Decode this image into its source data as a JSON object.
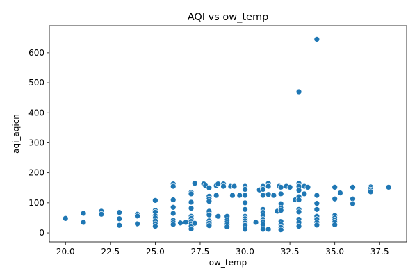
{
  "chart_data": {
    "type": "scatter",
    "title": "AQI vs ow_temp",
    "xlabel": "ow_temp",
    "ylabel": "aqi_aqicn",
    "xlim": [
      19.1,
      39.0
    ],
    "ylim": [
      -30,
      690
    ],
    "xticks": [
      "20.0",
      "22.5",
      "25.0",
      "27.5",
      "30.0",
      "32.5",
      "35.0",
      "37.5"
    ],
    "yticks": [
      "0",
      "100",
      "200",
      "300",
      "400",
      "500",
      "600"
    ],
    "grid": false,
    "legend": "none",
    "color": "#1f77b4",
    "points": [
      [
        20.0,
        48
      ],
      [
        21.0,
        65
      ],
      [
        21.0,
        35
      ],
      [
        22.0,
        72
      ],
      [
        22.0,
        62
      ],
      [
        23.0,
        68
      ],
      [
        23.0,
        47
      ],
      [
        23.0,
        25
      ],
      [
        24.0,
        62
      ],
      [
        24.0,
        56
      ],
      [
        24.0,
        30
      ],
      [
        25.0,
        108
      ],
      [
        25.0,
        75
      ],
      [
        25.0,
        69
      ],
      [
        25.0,
        57
      ],
      [
        25.0,
        50
      ],
      [
        25.0,
        40
      ],
      [
        25.0,
        30
      ],
      [
        25.0,
        22
      ],
      [
        26.0,
        163
      ],
      [
        26.0,
        155
      ],
      [
        26.0,
        110
      ],
      [
        26.0,
        85
      ],
      [
        26.0,
        65
      ],
      [
        26.0,
        42
      ],
      [
        26.0,
        35
      ],
      [
        26.0,
        28
      ],
      [
        26.4,
        33
      ],
      [
        26.7,
        35
      ],
      [
        27.0,
        135
      ],
      [
        27.0,
        130
      ],
      [
        27.0,
        102
      ],
      [
        27.0,
        82
      ],
      [
        27.0,
        55
      ],
      [
        27.0,
        48
      ],
      [
        27.0,
        38
      ],
      [
        27.0,
        30
      ],
      [
        27.0,
        22
      ],
      [
        27.0,
        13
      ],
      [
        27.2,
        165
      ],
      [
        27.2,
        32
      ],
      [
        27.7,
        163
      ],
      [
        27.8,
        157
      ],
      [
        28.0,
        150
      ],
      [
        28.0,
        122
      ],
      [
        28.0,
        113
      ],
      [
        28.0,
        105
      ],
      [
        28.0,
        72
      ],
      [
        28.0,
        60
      ],
      [
        28.0,
        40
      ],
      [
        28.0,
        32
      ],
      [
        28.0,
        24
      ],
      [
        28.4,
        157
      ],
      [
        28.4,
        125
      ],
      [
        28.5,
        163
      ],
      [
        28.5,
        55
      ],
      [
        28.8,
        163
      ],
      [
        28.8,
        155
      ],
      [
        29.0,
        55
      ],
      [
        29.0,
        42
      ],
      [
        29.0,
        35
      ],
      [
        29.0,
        28
      ],
      [
        29.0,
        20
      ],
      [
        29.2,
        155
      ],
      [
        29.3,
        125
      ],
      [
        29.4,
        155
      ],
      [
        29.7,
        125
      ],
      [
        30.0,
        155
      ],
      [
        30.0,
        145
      ],
      [
        30.0,
        125
      ],
      [
        30.0,
        100
      ],
      [
        30.0,
        78
      ],
      [
        30.0,
        55
      ],
      [
        30.0,
        47
      ],
      [
        30.0,
        40
      ],
      [
        30.0,
        33
      ],
      [
        30.0,
        25
      ],
      [
        30.0,
        12
      ],
      [
        30.6,
        35
      ],
      [
        30.8,
        143
      ],
      [
        31.0,
        155
      ],
      [
        31.0,
        145
      ],
      [
        31.0,
        125
      ],
      [
        31.0,
        78
      ],
      [
        31.0,
        68
      ],
      [
        31.0,
        58
      ],
      [
        31.0,
        45
      ],
      [
        31.0,
        37
      ],
      [
        31.0,
        28
      ],
      [
        31.0,
        12
      ],
      [
        31.3,
        165
      ],
      [
        31.3,
        155
      ],
      [
        31.3,
        128
      ],
      [
        31.3,
        12
      ],
      [
        31.6,
        125
      ],
      [
        31.8,
        72
      ],
      [
        31.9,
        155
      ],
      [
        32.0,
        152
      ],
      [
        32.0,
        130
      ],
      [
        32.0,
        97
      ],
      [
        32.0,
        82
      ],
      [
        32.0,
        75
      ],
      [
        32.0,
        38
      ],
      [
        32.0,
        28
      ],
      [
        32.0,
        18
      ],
      [
        32.0,
        10
      ],
      [
        32.3,
        155
      ],
      [
        32.5,
        152
      ],
      [
        32.8,
        110
      ],
      [
        33.0,
        470
      ],
      [
        33.0,
        165
      ],
      [
        33.0,
        155
      ],
      [
        33.0,
        142
      ],
      [
        33.0,
        120
      ],
      [
        33.0,
        110
      ],
      [
        33.0,
        78
      ],
      [
        33.0,
        70
      ],
      [
        33.0,
        45
      ],
      [
        33.0,
        35
      ],
      [
        33.0,
        22
      ],
      [
        33.3,
        155
      ],
      [
        33.3,
        130
      ],
      [
        33.5,
        152
      ],
      [
        34.0,
        645
      ],
      [
        34.0,
        125
      ],
      [
        34.0,
        98
      ],
      [
        34.0,
        78
      ],
      [
        34.0,
        55
      ],
      [
        34.0,
        45
      ],
      [
        34.0,
        35
      ],
      [
        34.0,
        26
      ],
      [
        35.0,
        152
      ],
      [
        35.0,
        113
      ],
      [
        35.0,
        58
      ],
      [
        35.0,
        50
      ],
      [
        35.0,
        43
      ],
      [
        35.0,
        36
      ],
      [
        35.0,
        27
      ],
      [
        35.3,
        133
      ],
      [
        36.0,
        152
      ],
      [
        36.0,
        113
      ],
      [
        36.0,
        97
      ],
      [
        37.0,
        153
      ],
      [
        37.0,
        148
      ],
      [
        37.0,
        143
      ],
      [
        37.0,
        137
      ],
      [
        38.0,
        152
      ]
    ]
  }
}
